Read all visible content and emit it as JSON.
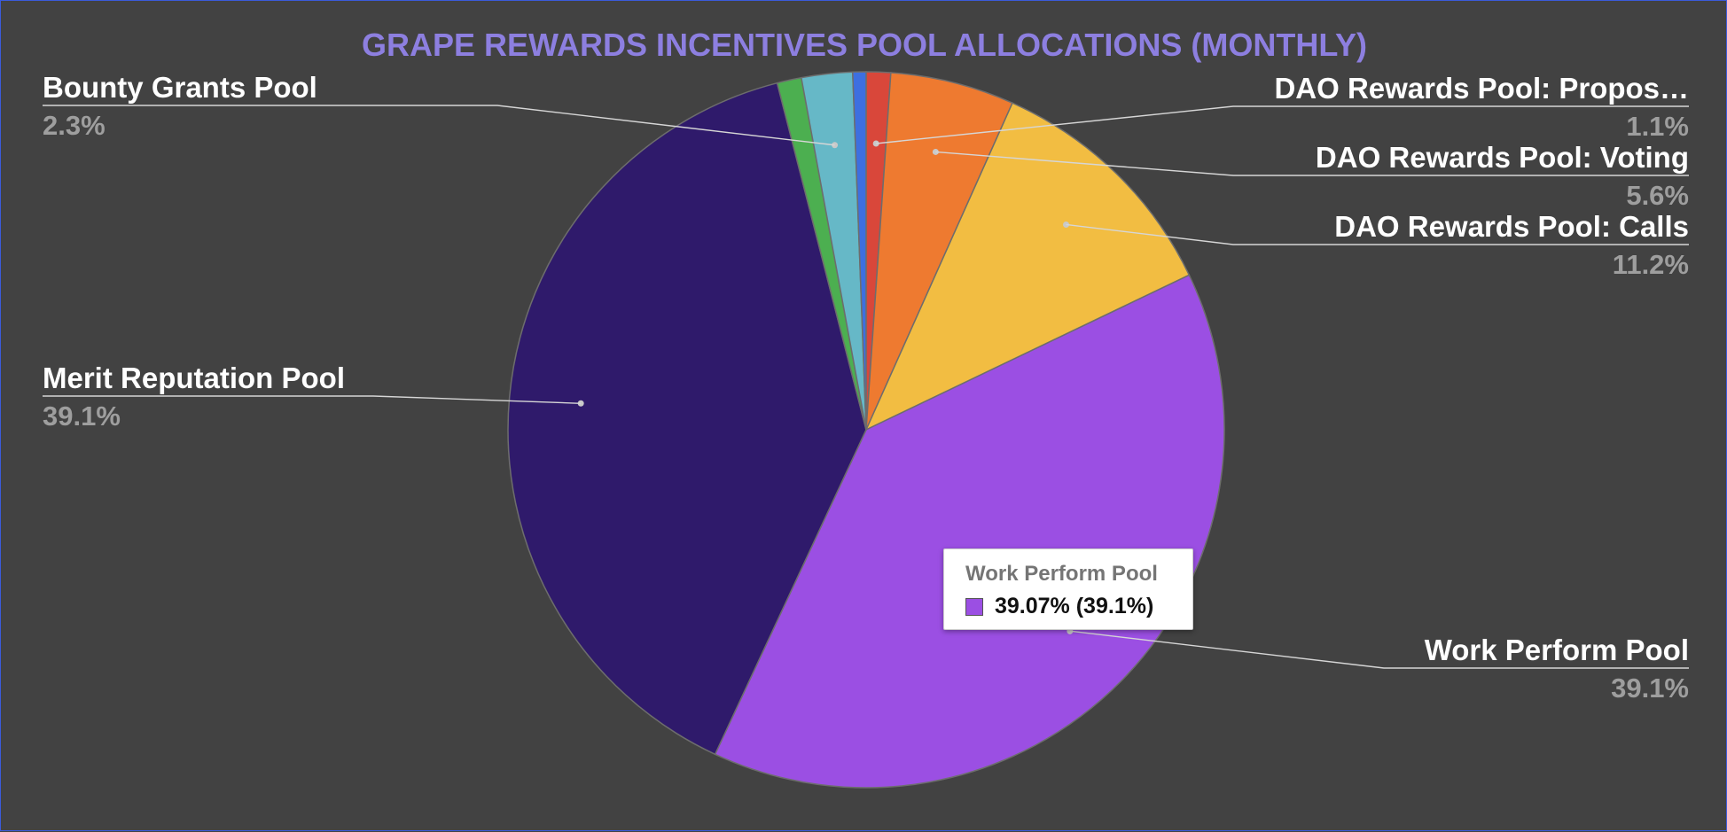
{
  "chart_data": {
    "type": "pie",
    "title": "GRAPE REWARDS INCENTIVES POOL ALLOCATIONS (MONTHLY)",
    "slices": [
      {
        "name": "DAO Rewards Pool: Propos…",
        "value": 1.1,
        "label_pct": "1.1%",
        "color": "#d9473a"
      },
      {
        "name": "DAO Rewards Pool: Voting",
        "value": 5.6,
        "label_pct": "5.6%",
        "color": "#ee7a30"
      },
      {
        "name": "DAO Rewards Pool: Calls",
        "value": 11.2,
        "label_pct": "11.2%",
        "color": "#f2bd42"
      },
      {
        "name": "Work Perform Pool",
        "value": 39.07,
        "label_pct": "39.1%",
        "color": "#9b4fe3"
      },
      {
        "name": "Merit Reputation Pool",
        "value": 39.1,
        "label_pct": "39.1%",
        "color": "#2f1a6b"
      },
      {
        "name": "",
        "value": 1.1,
        "label_pct": "",
        "color": "#4caf50"
      },
      {
        "name": "Bounty Grants Pool",
        "value": 2.3,
        "label_pct": "2.3%",
        "color": "#66b8c7"
      },
      {
        "name": "",
        "value": 0.6,
        "label_pct": "",
        "color": "#3d6fe0"
      }
    ],
    "legend": "none"
  },
  "tooltip": {
    "name": "Work Perform Pool",
    "value": "39.07% (39.1%)",
    "color": "#9b4fe3"
  }
}
